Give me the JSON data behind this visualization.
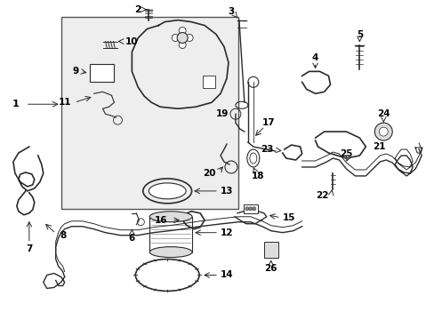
{
  "background_color": "#ffffff",
  "line_color": "#2a2a2a",
  "box_fill": "#eeeeee",
  "figsize": [
    4.89,
    3.6
  ],
  "dpi": 100
}
